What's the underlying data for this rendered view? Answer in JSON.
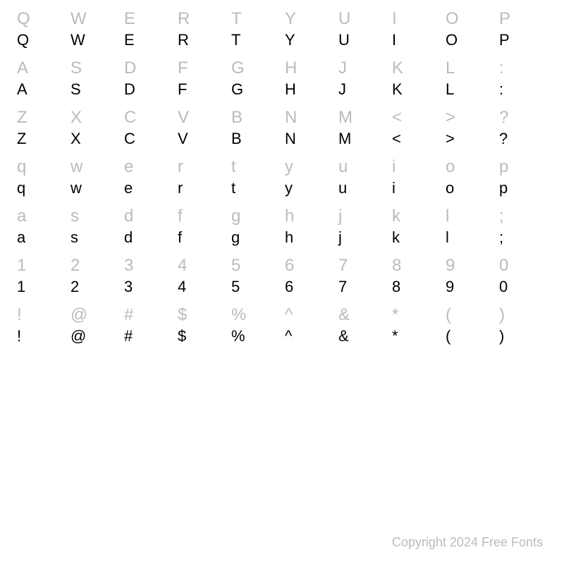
{
  "characterMap": {
    "rows": [
      [
        "Q",
        "W",
        "E",
        "R",
        "T",
        "Y",
        "U",
        "I",
        "O",
        "P"
      ],
      [
        "A",
        "S",
        "D",
        "F",
        "G",
        "H",
        "J",
        "K",
        "L",
        ":"
      ],
      [
        "Z",
        "X",
        "C",
        "V",
        "B",
        "N",
        "M",
        "<",
        ">",
        "?"
      ],
      [
        "q",
        "w",
        "e",
        "r",
        "t",
        "y",
        "u",
        "i",
        "o",
        "p"
      ],
      [
        "a",
        "s",
        "d",
        "f",
        "g",
        "h",
        "j",
        "k",
        "l",
        ";"
      ],
      [
        "1",
        "2",
        "3",
        "4",
        "5",
        "6",
        "7",
        "8",
        "9",
        "0"
      ],
      [
        "!",
        "@",
        "#",
        "$",
        "%",
        "^",
        "&",
        "*",
        "(",
        ")"
      ]
    ],
    "refColor": "#bbbbbb",
    "sampleColor": "#000000",
    "refFontSize": 24,
    "sampleFontSize": 22,
    "backgroundColor": "#ffffff",
    "columns": 10
  },
  "copyright": {
    "text": "Copyright 2024 Free Fonts",
    "color": "#bbbbbb",
    "fontSize": 18
  }
}
